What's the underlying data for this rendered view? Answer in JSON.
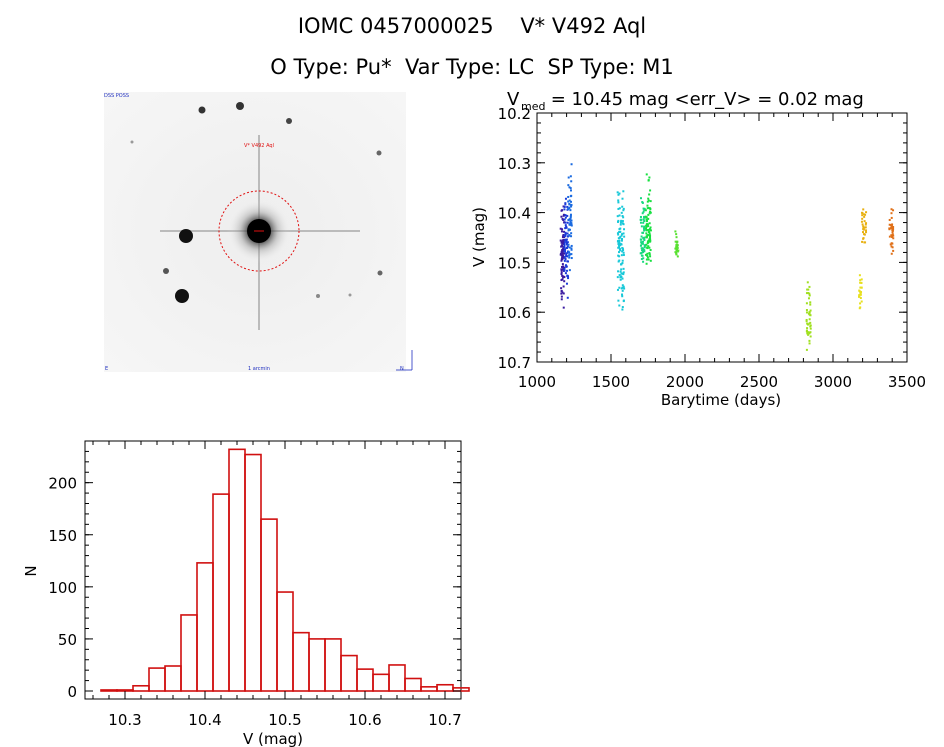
{
  "header": {
    "title_line1": "IOMC 0457000025    V* V492 Aql",
    "title_line2": "O Type: Pu*  Var Type: LC  SP Type: M1"
  },
  "thumbnail": {
    "label_top_left": "DSS POSS",
    "label_target": "V* V492 Aql",
    "label_bottom_center": "1 arcmin",
    "label_bottom_left": "E",
    "label_bottom_right": "N"
  },
  "chart_data": [
    {
      "type": "scatter",
      "title_prefix": "V",
      "title_sub": "med",
      "title_rest": " = 10.45 mag <err_V> = 0.02 mag",
      "xlabel": "Barytime (days)",
      "ylabel": "V (mag)",
      "xlim": [
        1000,
        3500
      ],
      "ylim": [
        10.2,
        10.7
      ],
      "y_inverted": true,
      "xticks": [
        1000,
        1500,
        2000,
        2500,
        3000,
        3500
      ],
      "yticks": [
        10.2,
        10.3,
        10.4,
        10.5,
        10.6,
        10.7
      ],
      "ytick_labels": [
        "10.2",
        "10.3",
        "10.4",
        "10.5",
        "10.6",
        "10.7"
      ],
      "groups": [
        {
          "x_start": 1160,
          "x_end": 1185,
          "y_min": 10.37,
          "y_max": 10.62,
          "center": 10.48,
          "color": "#3a1aa0",
          "n": 90
        },
        {
          "x_start": 1185,
          "x_end": 1210,
          "y_min": 10.36,
          "y_max": 10.58,
          "center": 10.46,
          "color": "#1a3ad8",
          "n": 70
        },
        {
          "x_start": 1210,
          "x_end": 1235,
          "y_min": 10.28,
          "y_max": 10.52,
          "center": 10.42,
          "color": "#1a6ae0",
          "n": 60
        },
        {
          "x_start": 1545,
          "x_end": 1590,
          "y_min": 10.35,
          "y_max": 10.62,
          "center": 10.47,
          "color": "#18c8d8",
          "n": 110
        },
        {
          "x_start": 1700,
          "x_end": 1730,
          "y_min": 10.36,
          "y_max": 10.51,
          "center": 10.45,
          "color": "#18d880",
          "n": 60
        },
        {
          "x_start": 1735,
          "x_end": 1770,
          "y_min": 10.31,
          "y_max": 10.52,
          "center": 10.44,
          "color": "#18e040",
          "n": 80
        },
        {
          "x_start": 1935,
          "x_end": 1955,
          "y_min": 10.43,
          "y_max": 10.49,
          "center": 10.47,
          "color": "#58e030",
          "n": 30
        },
        {
          "x_start": 2820,
          "x_end": 2850,
          "y_min": 10.53,
          "y_max": 10.69,
          "center": 10.62,
          "color": "#a0e020",
          "n": 45
        },
        {
          "x_start": 3175,
          "x_end": 3195,
          "y_min": 10.52,
          "y_max": 10.6,
          "center": 10.56,
          "color": "#e8e020",
          "n": 25
        },
        {
          "x_start": 3195,
          "x_end": 3225,
          "y_min": 10.38,
          "y_max": 10.47,
          "center": 10.43,
          "color": "#e8b010",
          "n": 30
        },
        {
          "x_start": 3380,
          "x_end": 3410,
          "y_min": 10.39,
          "y_max": 10.49,
          "center": 10.44,
          "color": "#e07018",
          "n": 35
        }
      ]
    },
    {
      "type": "bar",
      "xlabel": "V (mag)",
      "ylabel": "N",
      "xlim": [
        10.25,
        10.72
      ],
      "ylim": [
        0,
        240
      ],
      "xticks": [
        10.3,
        10.4,
        10.5,
        10.6,
        10.7
      ],
      "xtick_labels": [
        "10.3",
        "10.4",
        "10.5",
        "10.6",
        "10.7"
      ],
      "yticks": [
        0,
        50,
        100,
        150,
        200
      ],
      "ytick_labels": [
        "0",
        "50",
        "100",
        "150",
        "200"
      ],
      "bin_start": 10.27,
      "bin_width": 0.02,
      "values": [
        1,
        1,
        5,
        22,
        24,
        73,
        123,
        189,
        232,
        227,
        165,
        95,
        56,
        50,
        50,
        34,
        21,
        16,
        25,
        12,
        4,
        6,
        3
      ],
      "color": "#d01010"
    }
  ]
}
